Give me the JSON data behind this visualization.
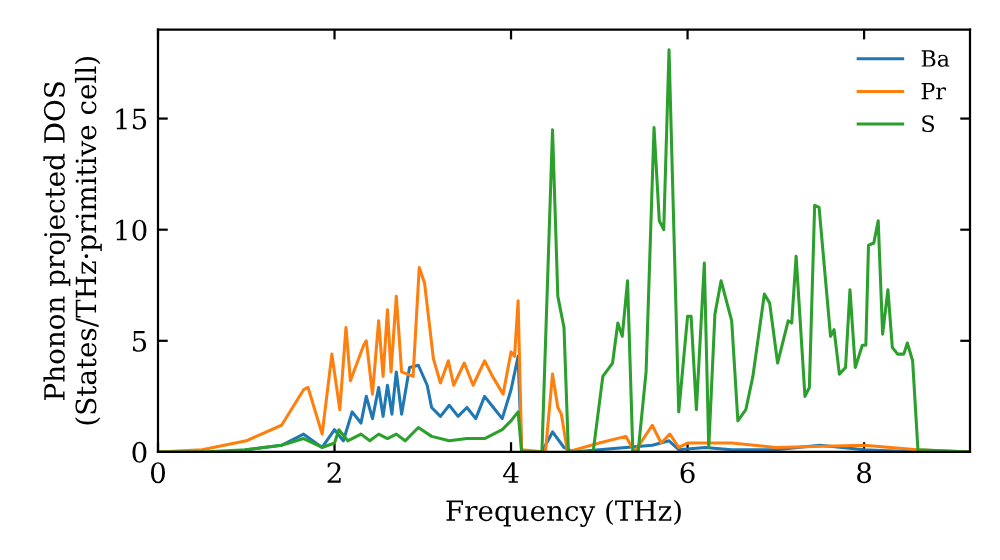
{
  "chart_data": {
    "type": "line",
    "xlabel": "Frequency (THz)",
    "ylabel": "Phonon projected DOS\n(States/THz·primitive cell)",
    "xlim": [
      0,
      9.2
    ],
    "ylim": [
      0,
      19
    ],
    "xticks": [
      0,
      2,
      4,
      6,
      8
    ],
    "yticks": [
      0,
      5,
      10,
      15
    ],
    "grid": false,
    "legend": "top right",
    "marker": "none",
    "line_style": "solid",
    "series": [
      {
        "name": "Ba",
        "color": "#1f77b4",
        "x": [
          1.0,
          1.4,
          1.65,
          1.86,
          2.0,
          2.1,
          2.2,
          2.3,
          2.36,
          2.43,
          2.5,
          2.55,
          2.6,
          2.65,
          2.7,
          2.76,
          2.85,
          2.95,
          3.05,
          3.1,
          3.2,
          3.3,
          3.4,
          3.5,
          3.6,
          3.7,
          3.8,
          3.9,
          4.0,
          4.08,
          4.12,
          4.35,
          4.47,
          4.6,
          4.7,
          5.0,
          5.3,
          5.6,
          5.79,
          5.9,
          6.2,
          6.5,
          7.0,
          7.5,
          8.0,
          8.6,
          9.2
        ],
        "values": [
          0.1,
          0.3,
          0.8,
          0.2,
          1.0,
          0.5,
          1.8,
          1.3,
          2.5,
          1.5,
          2.9,
          1.6,
          3.0,
          1.7,
          3.6,
          1.7,
          3.8,
          3.9,
          3.0,
          2.0,
          1.6,
          2.1,
          1.6,
          2.0,
          1.5,
          2.5,
          2.0,
          1.5,
          2.8,
          4.3,
          0,
          0,
          0.9,
          0.2,
          0,
          0.1,
          0.2,
          0.3,
          0.5,
          0.1,
          0.2,
          0.1,
          0.1,
          0.3,
          0.1,
          0,
          0
        ]
      },
      {
        "name": "Pr",
        "color": "#ff7f0e",
        "x": [
          0,
          0.5,
          1.0,
          1.4,
          1.65,
          1.7,
          1.86,
          1.97,
          2.06,
          2.13,
          2.18,
          2.33,
          2.36,
          2.43,
          2.5,
          2.55,
          2.6,
          2.64,
          2.7,
          2.76,
          2.89,
          2.96,
          3.02,
          3.12,
          3.2,
          3.29,
          3.35,
          3.47,
          3.57,
          3.7,
          3.79,
          3.91,
          4.0,
          4.04,
          4.08,
          4.12,
          4.39,
          4.47,
          4.53,
          4.57,
          4.64,
          5.0,
          5.3,
          5.4,
          5.6,
          5.7,
          5.8,
          5.9,
          6.0,
          6.5,
          7.0,
          8.0,
          8.6,
          9.2
        ],
        "values": [
          0,
          0.1,
          0.5,
          1.2,
          2.8,
          2.9,
          0.8,
          4.4,
          1.9,
          5.6,
          3.2,
          4.8,
          5.0,
          2.6,
          5.9,
          3.4,
          6.4,
          3.6,
          7.0,
          3.6,
          3.4,
          8.3,
          7.6,
          4.2,
          3.1,
          4.1,
          3.0,
          4.0,
          3.0,
          4.1,
          3.4,
          2.6,
          4.5,
          4.3,
          6.8,
          0.1,
          0,
          3.5,
          2.0,
          1.7,
          0,
          0.4,
          0.7,
          0,
          1.2,
          0.4,
          0.8,
          0.2,
          0.4,
          0.4,
          0.2,
          0.3,
          0.1,
          0
        ]
      },
      {
        "name": "S",
        "color": "#2ca02c",
        "x": [
          0,
          0.5,
          1.0,
          1.4,
          1.65,
          1.86,
          2.0,
          2.05,
          2.15,
          2.3,
          2.4,
          2.5,
          2.6,
          2.7,
          2.8,
          2.95,
          3.1,
          3.3,
          3.5,
          3.7,
          3.9,
          4.0,
          4.08,
          4.12,
          4.35,
          4.47,
          4.53,
          4.6,
          4.65,
          4.93,
          5.04,
          5.15,
          5.21,
          5.26,
          5.32,
          5.38,
          5.44,
          5.53,
          5.62,
          5.68,
          5.73,
          5.79,
          5.9,
          6.0,
          6.04,
          6.1,
          6.19,
          6.24,
          6.31,
          6.38,
          6.5,
          6.57,
          6.66,
          6.74,
          6.87,
          6.93,
          7.02,
          7.14,
          7.18,
          7.23,
          7.33,
          7.38,
          7.44,
          7.49,
          7.62,
          7.66,
          7.72,
          7.79,
          7.84,
          7.9,
          7.98,
          8.02,
          8.05,
          8.11,
          8.16,
          8.21,
          8.27,
          8.32,
          8.38,
          8.45,
          8.49,
          8.55,
          8.61,
          9.2
        ],
        "values": [
          0,
          0,
          0.1,
          0.3,
          0.6,
          0.2,
          0.4,
          1.0,
          0.5,
          0.8,
          0.5,
          0.8,
          0.6,
          0.8,
          0.5,
          1.1,
          0.7,
          0.5,
          0.6,
          0.6,
          1.0,
          1.4,
          1.8,
          0,
          0,
          14.5,
          7.0,
          5.6,
          0,
          0,
          3.4,
          4.0,
          5.8,
          5.2,
          7.7,
          0,
          0,
          3.6,
          14.6,
          10.4,
          10.0,
          18.1,
          1.8,
          6.1,
          6.1,
          1.9,
          8.5,
          0.2,
          6.2,
          7.7,
          5.9,
          1.4,
          1.9,
          3.4,
          7.1,
          6.7,
          4.0,
          5.9,
          5.8,
          8.8,
          2.5,
          2.9,
          11.1,
          11.0,
          5.2,
          5.5,
          3.5,
          3.8,
          7.3,
          3.8,
          4.8,
          4.8,
          9.3,
          9.4,
          10.4,
          5.3,
          7.3,
          4.7,
          4.4,
          4.4,
          4.9,
          4.1,
          0.1,
          0
        ]
      }
    ]
  }
}
